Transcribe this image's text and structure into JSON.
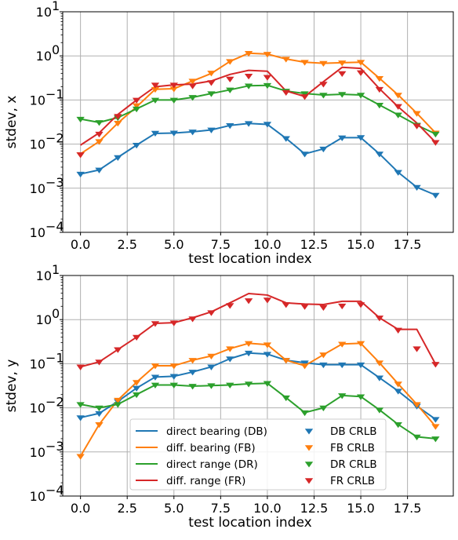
{
  "colors": {
    "DB": "#1f77b4",
    "FB": "#ff7f0e",
    "DR": "#2ca02c",
    "FR": "#d62728",
    "grid": "#b0b0b0"
  },
  "chart_data": [
    {
      "type": "line",
      "xlabel": "test location index",
      "ylabel": "stdev, x",
      "yscale": "log",
      "ylim": [
        0.0001,
        10
      ],
      "xlim": [
        -0.95,
        19.95
      ],
      "grid": true,
      "x_ticks": [
        "0.0",
        "2.5",
        "5.0",
        "7.5",
        "10.0",
        "12.5",
        "15.0",
        "17.5"
      ],
      "x_tick_values": [
        0,
        2.5,
        5,
        7.5,
        10,
        12.5,
        15,
        17.5
      ],
      "y_ticks": [
        {
          "base": "10",
          "exp": "1",
          "value": 10
        },
        {
          "base": "10",
          "exp": "0",
          "value": 1
        },
        {
          "base": "10",
          "exp": "−1",
          "value": 0.1
        },
        {
          "base": "10",
          "exp": "−2",
          "value": 0.01
        },
        {
          "base": "10",
          "exp": "−3",
          "value": 0.001
        },
        {
          "base": "10",
          "exp": "−4",
          "value": 0.0001
        }
      ],
      "x": [
        0,
        1,
        2,
        3,
        4,
        5,
        6,
        7,
        8,
        9,
        10,
        11,
        12,
        13,
        14,
        15,
        16,
        17,
        18,
        19
      ],
      "series": [
        {
          "key": "DB",
          "kind": "line",
          "values": [
            0.0021,
            0.0026,
            0.005,
            0.0095,
            0.0175,
            0.0178,
            0.019,
            0.021,
            0.0265,
            0.0295,
            0.028,
            0.0135,
            0.006,
            0.0078,
            0.014,
            0.014,
            0.006,
            0.0023,
            0.00105,
            0.0007
          ]
        },
        {
          "key": "FB",
          "kind": "line",
          "values": [
            0.006,
            0.0115,
            0.03,
            0.07,
            0.175,
            0.18,
            0.27,
            0.4,
            0.75,
            1.15,
            1.1,
            0.85,
            0.72,
            0.68,
            0.7,
            0.72,
            0.31,
            0.13,
            0.05,
            0.018
          ]
        },
        {
          "key": "DR",
          "kind": "line",
          "values": [
            0.037,
            0.031,
            0.04,
            0.063,
            0.1,
            0.1,
            0.115,
            0.14,
            0.17,
            0.21,
            0.215,
            0.16,
            0.14,
            0.13,
            0.135,
            0.13,
            0.077,
            0.046,
            0.027,
            0.017
          ]
        },
        {
          "key": "FR",
          "kind": "line",
          "values": [
            0.0095,
            0.018,
            0.047,
            0.1,
            0.2,
            0.22,
            0.23,
            0.27,
            0.38,
            0.47,
            0.45,
            0.16,
            0.12,
            0.26,
            0.55,
            0.52,
            0.18,
            0.07,
            0.03,
            0.011
          ]
        },
        {
          "key": "DB",
          "kind": "crlb",
          "values": [
            0.0021,
            0.0026,
            0.005,
            0.0095,
            0.0178,
            0.018,
            0.019,
            0.021,
            0.0265,
            0.0295,
            0.0285,
            0.0135,
            0.006,
            0.0078,
            0.014,
            0.0142,
            0.006,
            0.0023,
            0.00105,
            0.0007
          ]
        },
        {
          "key": "FB",
          "kind": "crlb",
          "values": [
            0.0058,
            0.0115,
            0.03,
            0.075,
            0.175,
            0.18,
            0.27,
            0.41,
            0.75,
            1.15,
            1.1,
            0.85,
            0.72,
            0.68,
            0.7,
            0.72,
            0.31,
            0.13,
            0.05,
            0.018
          ]
        },
        {
          "key": "DR",
          "kind": "crlb",
          "values": [
            0.037,
            0.031,
            0.04,
            0.063,
            0.1,
            0.1,
            0.115,
            0.14,
            0.17,
            0.21,
            0.215,
            0.16,
            0.14,
            0.13,
            0.135,
            0.13,
            0.077,
            0.046,
            0.027,
            0.017
          ]
        },
        {
          "key": "FR",
          "kind": "crlb",
          "values": [
            0.0058,
            0.017,
            0.043,
            0.1,
            0.22,
            0.22,
            0.21,
            0.25,
            0.3,
            0.35,
            0.33,
            0.15,
            0.12,
            0.23,
            0.4,
            0.42,
            0.175,
            0.072,
            0.026,
            0.011
          ]
        }
      ]
    },
    {
      "type": "line",
      "xlabel": "test location index",
      "ylabel": "stdev, y",
      "yscale": "log",
      "ylim": [
        0.0001,
        10
      ],
      "xlim": [
        -0.95,
        19.95
      ],
      "grid": true,
      "legend_placement": "lower-center",
      "x_ticks": [
        "0.0",
        "2.5",
        "5.0",
        "7.5",
        "10.0",
        "12.5",
        "15.0",
        "17.5"
      ],
      "x_tick_values": [
        0,
        2.5,
        5,
        7.5,
        10,
        12.5,
        15,
        17.5
      ],
      "y_ticks": [
        {
          "base": "10",
          "exp": "1",
          "value": 10
        },
        {
          "base": "10",
          "exp": "0",
          "value": 1
        },
        {
          "base": "10",
          "exp": "−1",
          "value": 0.1
        },
        {
          "base": "10",
          "exp": "−2",
          "value": 0.01
        },
        {
          "base": "10",
          "exp": "−3",
          "value": 0.001
        },
        {
          "base": "10",
          "exp": "−4",
          "value": 0.0001
        }
      ],
      "x": [
        0,
        1,
        2,
        3,
        4,
        5,
        6,
        7,
        8,
        9,
        10,
        11,
        12,
        13,
        14,
        15,
        16,
        17,
        18,
        19
      ],
      "series": [
        {
          "key": "DB",
          "kind": "line",
          "values": [
            0.006,
            0.0075,
            0.014,
            0.028,
            0.05,
            0.052,
            0.065,
            0.085,
            0.13,
            0.175,
            0.165,
            0.12,
            0.105,
            0.095,
            0.095,
            0.095,
            0.048,
            0.024,
            0.011,
            0.0055
          ]
        },
        {
          "key": "FB",
          "kind": "line",
          "values": [
            0.0008,
            0.0042,
            0.015,
            0.038,
            0.09,
            0.09,
            0.12,
            0.15,
            0.22,
            0.29,
            0.27,
            0.12,
            0.09,
            0.16,
            0.28,
            0.29,
            0.105,
            0.035,
            0.012,
            0.0038
          ]
        },
        {
          "key": "DR",
          "kind": "line",
          "values": [
            0.012,
            0.01,
            0.012,
            0.02,
            0.033,
            0.033,
            0.031,
            0.032,
            0.033,
            0.035,
            0.036,
            0.017,
            0.0078,
            0.01,
            0.019,
            0.018,
            0.009,
            0.0042,
            0.0022,
            0.002
          ]
        },
        {
          "key": "FR",
          "kind": "line",
          "values": [
            0.085,
            0.11,
            0.21,
            0.4,
            0.82,
            0.85,
            1.1,
            1.5,
            2.4,
            3.9,
            3.6,
            2.4,
            2.25,
            2.2,
            2.6,
            2.6,
            1.1,
            0.6,
            0.6,
            0.098
          ]
        },
        {
          "key": "DB",
          "kind": "crlb",
          "values": [
            0.006,
            0.0075,
            0.014,
            0.028,
            0.05,
            0.052,
            0.065,
            0.085,
            0.13,
            0.175,
            0.165,
            0.12,
            0.105,
            0.095,
            0.095,
            0.095,
            0.048,
            0.024,
            0.011,
            0.0055
          ]
        },
        {
          "key": "FB",
          "kind": "crlb",
          "values": [
            0.0008,
            0.0042,
            0.015,
            0.038,
            0.09,
            0.09,
            0.12,
            0.15,
            0.22,
            0.29,
            0.27,
            0.12,
            0.09,
            0.16,
            0.28,
            0.29,
            0.105,
            0.035,
            0.012,
            0.0038
          ]
        },
        {
          "key": "DR",
          "kind": "crlb",
          "values": [
            0.012,
            0.01,
            0.012,
            0.02,
            0.033,
            0.033,
            0.031,
            0.032,
            0.033,
            0.035,
            0.036,
            0.017,
            0.0078,
            0.01,
            0.019,
            0.018,
            0.009,
            0.0042,
            0.0022,
            0.002
          ]
        },
        {
          "key": "FR",
          "kind": "crlb",
          "values": [
            0.085,
            0.11,
            0.21,
            0.4,
            0.82,
            0.85,
            1.05,
            1.45,
            2.1,
            2.7,
            2.8,
            2.2,
            2.0,
            1.9,
            2.05,
            2.2,
            1.1,
            0.58,
            0.22,
            0.098
          ]
        }
      ],
      "legend": {
        "lines": [
          {
            "key": "DB",
            "label": "direct bearing (DB)"
          },
          {
            "key": "FB",
            "label": "diff. bearing (FB)"
          },
          {
            "key": "DR",
            "label": "direct range (DR)"
          },
          {
            "key": "FR",
            "label": "diff. range (FR)"
          }
        ],
        "markers": [
          {
            "key": "DB",
            "label": "DB CRLB"
          },
          {
            "key": "FB",
            "label": "FB CRLB"
          },
          {
            "key": "DR",
            "label": "DR CRLB"
          },
          {
            "key": "FR",
            "label": "FR CRLB"
          }
        ]
      }
    }
  ]
}
